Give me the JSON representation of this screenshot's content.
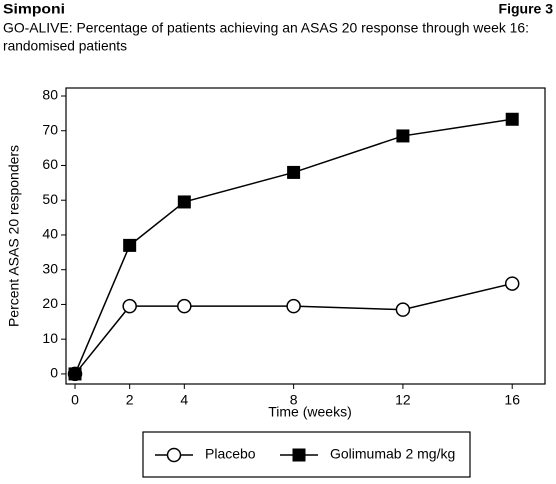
{
  "header": {
    "product": "Simponi",
    "figure": "Figure 3"
  },
  "chart_data": {
    "type": "line",
    "title_lines": [
      "GO-ALIVE: Percentage of patients achieving an ASAS 20 response through week 16:",
      "randomised patients"
    ],
    "x_label": "Time (weeks)",
    "y_label": "Percent ASAS 20 responders",
    "x": [
      0,
      2,
      4,
      8,
      12,
      16
    ],
    "series": [
      {
        "name": "Placebo",
        "color": "#000000",
        "marker": "circle",
        "values": [
          0,
          19.5,
          19.5,
          19.5,
          18.5,
          26
        ]
      },
      {
        "name": "Golimumab 2 mg/kg",
        "color": "#000000",
        "marker": "square",
        "values": [
          0,
          37,
          49.5,
          58,
          68.5,
          73.3
        ]
      }
    ],
    "xlim": [
      -0.33,
      17.2
    ],
    "xticks": [
      0,
      2,
      4,
      8,
      12,
      16
    ],
    "ylim": [
      -2.9,
      82.3
    ],
    "yticks": [
      0,
      10,
      20,
      30,
      40,
      50,
      60,
      70,
      80
    ],
    "grid": false,
    "legend": "bottom"
  }
}
